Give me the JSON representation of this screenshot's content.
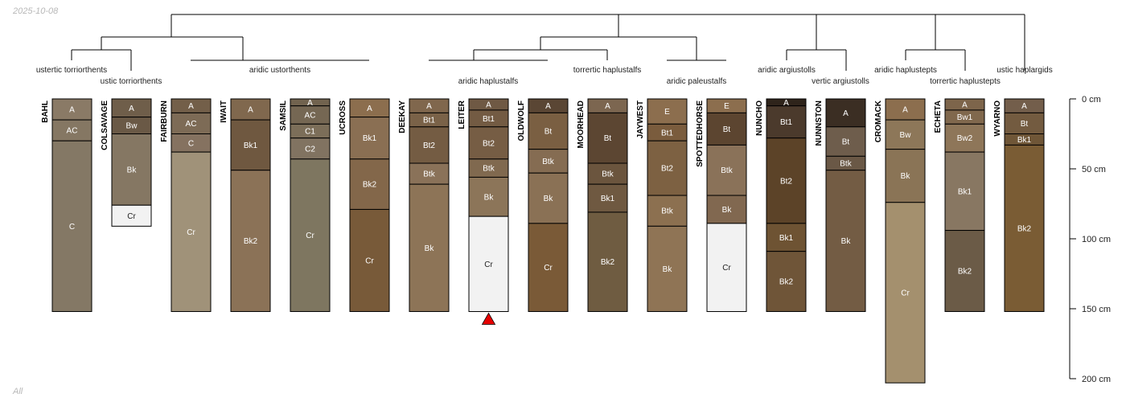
{
  "date_label": "2025-10-08",
  "footer_label": "All",
  "chart_data": {
    "type": "soil-profile-sketch",
    "depth_unit": "cm",
    "ylim": [
      0,
      200
    ],
    "axis_ticks": [
      {
        "value": 0,
        "label": "0 cm"
      },
      {
        "value": 50,
        "label": "50 cm"
      },
      {
        "value": 100,
        "label": "100 cm"
      },
      {
        "value": 150,
        "label": "150 cm"
      },
      {
        "value": 200,
        "label": "200 cm"
      }
    ],
    "taxa_labels": [
      "ustertic torriorthents",
      "ustic torriorthents",
      "aridic ustorthents",
      "aridic haplustalfs",
      "torrertic haplustalfs",
      "aridic paleustalfs",
      "aridic argiustolls",
      "vertic argiustolls",
      "aridic haplustepts",
      "torrertic haplustepts",
      "ustic haplargids"
    ],
    "marker": {
      "profile": "LEITER",
      "symbol": "triangle",
      "color": "#e60000"
    },
    "profiles": [
      {
        "name": "BAHL",
        "horizons": [
          {
            "name": "A",
            "top": 0,
            "bottom": 15,
            "color": "#8a7a66"
          },
          {
            "name": "AC",
            "top": 15,
            "bottom": 30,
            "color": "#857763"
          },
          {
            "name": "C",
            "top": 30,
            "bottom": 152,
            "color": "#847865"
          }
        ]
      },
      {
        "name": "COLSAVAGE",
        "horizons": [
          {
            "name": "A",
            "top": 0,
            "bottom": 13,
            "color": "#6f5e4a"
          },
          {
            "name": "Bw",
            "top": 13,
            "bottom": 25,
            "color": "#6a5946"
          },
          {
            "name": "Bk",
            "top": 25,
            "bottom": 76,
            "color": "#857763"
          },
          {
            "name": "Cr",
            "top": 76,
            "bottom": 91,
            "color": "#f2f2f2"
          }
        ]
      },
      {
        "name": "FAIRBURN",
        "horizons": [
          {
            "name": "A",
            "top": 0,
            "bottom": 10,
            "color": "#735f49"
          },
          {
            "name": "AC",
            "top": 10,
            "bottom": 25,
            "color": "#7d6b56"
          },
          {
            "name": "C",
            "top": 25,
            "bottom": 38,
            "color": "#857260"
          },
          {
            "name": "Cr",
            "top": 38,
            "bottom": 152,
            "color": "#a09279"
          }
        ]
      },
      {
        "name": "IWAIT",
        "horizons": [
          {
            "name": "A",
            "top": 0,
            "bottom": 15,
            "color": "#80684e"
          },
          {
            "name": "Bk1",
            "top": 15,
            "bottom": 51,
            "color": "#6f5840"
          },
          {
            "name": "Bk2",
            "top": 51,
            "bottom": 152,
            "color": "#8b7257"
          }
        ]
      },
      {
        "name": "SAMSIL",
        "horizons": [
          {
            "name": "A",
            "top": 0,
            "bottom": 5,
            "color": "#71634f"
          },
          {
            "name": "AC",
            "top": 5,
            "bottom": 18,
            "color": "#756753"
          },
          {
            "name": "C1",
            "top": 18,
            "bottom": 28,
            "color": "#7c6e59"
          },
          {
            "name": "C2",
            "top": 28,
            "bottom": 43,
            "color": "#817361"
          },
          {
            "name": "Cr",
            "top": 43,
            "bottom": 152,
            "color": "#7e7660"
          }
        ]
      },
      {
        "name": "UCROSS",
        "horizons": [
          {
            "name": "A",
            "top": 0,
            "bottom": 13,
            "color": "#8c6e4e"
          },
          {
            "name": "Bk1",
            "top": 13,
            "bottom": 43,
            "color": "#8a6f53"
          },
          {
            "name": "Bk2",
            "top": 43,
            "bottom": 79,
            "color": "#83674a"
          },
          {
            "name": "Cr",
            "top": 79,
            "bottom": 152,
            "color": "#785a39"
          }
        ]
      },
      {
        "name": "DEEKAY",
        "horizons": [
          {
            "name": "A",
            "top": 0,
            "bottom": 10,
            "color": "#80674d"
          },
          {
            "name": "Bt1",
            "top": 10,
            "bottom": 20,
            "color": "#7a6248"
          },
          {
            "name": "Bt2",
            "top": 20,
            "bottom": 46,
            "color": "#745c43"
          },
          {
            "name": "Btk",
            "top": 46,
            "bottom": 61,
            "color": "#8a7259"
          },
          {
            "name": "Bk",
            "top": 61,
            "bottom": 152,
            "color": "#8d7457"
          }
        ]
      },
      {
        "name": "LEITER",
        "horizons": [
          {
            "name": "A",
            "top": 0,
            "bottom": 8,
            "color": "#6f5944"
          },
          {
            "name": "Bt1",
            "top": 8,
            "bottom": 20,
            "color": "#735b43"
          },
          {
            "name": "Bt2",
            "top": 20,
            "bottom": 43,
            "color": "#765d44"
          },
          {
            "name": "Btk",
            "top": 43,
            "bottom": 56,
            "color": "#80694f"
          },
          {
            "name": "Bk",
            "top": 56,
            "bottom": 84,
            "color": "#8c7559"
          },
          {
            "name": "Cr",
            "top": 84,
            "bottom": 152,
            "color": "#f2f2f2"
          }
        ]
      },
      {
        "name": "OLDWOLF",
        "horizons": [
          {
            "name": "A",
            "top": 0,
            "bottom": 10,
            "color": "#5a4634"
          },
          {
            "name": "Bt",
            "top": 10,
            "bottom": 36,
            "color": "#7a5f42"
          },
          {
            "name": "Btk",
            "top": 36,
            "bottom": 53,
            "color": "#856c52"
          },
          {
            "name": "Bk",
            "top": 53,
            "bottom": 89,
            "color": "#8a7155"
          },
          {
            "name": "Cr",
            "top": 89,
            "bottom": 152,
            "color": "#7a5a37"
          }
        ]
      },
      {
        "name": "MOORHEAD",
        "horizons": [
          {
            "name": "A",
            "top": 0,
            "bottom": 10,
            "color": "#7c6650"
          },
          {
            "name": "Bt",
            "top": 10,
            "bottom": 46,
            "color": "#5c4632"
          },
          {
            "name": "Btk",
            "top": 46,
            "bottom": 61,
            "color": "#6b553e"
          },
          {
            "name": "Bk1",
            "top": 61,
            "bottom": 81,
            "color": "#6f5941"
          },
          {
            "name": "Bk2",
            "top": 81,
            "bottom": 152,
            "color": "#6f5c41"
          }
        ]
      },
      {
        "name": "JAYWEST",
        "horizons": [
          {
            "name": "E",
            "top": 0,
            "bottom": 18,
            "color": "#8c6e4e"
          },
          {
            "name": "Bt1",
            "top": 18,
            "bottom": 30,
            "color": "#7a5c3d"
          },
          {
            "name": "Bt2",
            "top": 30,
            "bottom": 69,
            "color": "#7d6142"
          },
          {
            "name": "Btk",
            "top": 69,
            "bottom": 91,
            "color": "#8c7050"
          },
          {
            "name": "Bk",
            "top": 91,
            "bottom": 152,
            "color": "#8f7455"
          }
        ]
      },
      {
        "name": "SPOTTEDHORSE",
        "horizons": [
          {
            "name": "E",
            "top": 0,
            "bottom": 10,
            "color": "#8c6e4e"
          },
          {
            "name": "Bt",
            "top": 10,
            "bottom": 33,
            "color": "#5c4530"
          },
          {
            "name": "Btk",
            "top": 33,
            "bottom": 69,
            "color": "#8a7259"
          },
          {
            "name": "Bk",
            "top": 69,
            "bottom": 89,
            "color": "#816850"
          },
          {
            "name": "Cr",
            "top": 89,
            "bottom": 152,
            "color": "#f2f2f2"
          }
        ]
      },
      {
        "name": "NUNCHO",
        "horizons": [
          {
            "name": "A",
            "top": 0,
            "bottom": 5,
            "color": "#2f241b"
          },
          {
            "name": "Bt1",
            "top": 5,
            "bottom": 28,
            "color": "#4b3a2c"
          },
          {
            "name": "Bt2",
            "top": 28,
            "bottom": 89,
            "color": "#5c4328"
          },
          {
            "name": "Bk1",
            "top": 89,
            "bottom": 109,
            "color": "#6e5333"
          },
          {
            "name": "Bk2",
            "top": 109,
            "bottom": 152,
            "color": "#6f5538"
          }
        ]
      },
      {
        "name": "NUNNSTON",
        "horizons": [
          {
            "name": "A",
            "top": 0,
            "bottom": 20,
            "color": "#3b2e23"
          },
          {
            "name": "Bt",
            "top": 20,
            "bottom": 41,
            "color": "#6e5d4c"
          },
          {
            "name": "Btk",
            "top": 41,
            "bottom": 51,
            "color": "#6a5846"
          },
          {
            "name": "Bk",
            "top": 51,
            "bottom": 152,
            "color": "#735c44"
          }
        ]
      },
      {
        "name": "CROMACK",
        "horizons": [
          {
            "name": "A",
            "top": 0,
            "bottom": 15,
            "color": "#8c6e4e"
          },
          {
            "name": "Bw",
            "top": 15,
            "bottom": 36,
            "color": "#8d7759"
          },
          {
            "name": "Bk",
            "top": 36,
            "bottom": 74,
            "color": "#8a7456"
          },
          {
            "name": "Cr",
            "top": 74,
            "bottom": 203,
            "color": "#a4906e"
          }
        ]
      },
      {
        "name": "ECHETA",
        "horizons": [
          {
            "name": "A",
            "top": 0,
            "bottom": 8,
            "color": "#7d654b"
          },
          {
            "name": "Bw1",
            "top": 8,
            "bottom": 18,
            "color": "#80684d"
          },
          {
            "name": "Bw2",
            "top": 18,
            "bottom": 38,
            "color": "#8e7659"
          },
          {
            "name": "Bk1",
            "top": 38,
            "bottom": 94,
            "color": "#887762"
          },
          {
            "name": "Bk2",
            "top": 94,
            "bottom": 152,
            "color": "#6b5b47"
          }
        ]
      },
      {
        "name": "WYARNO",
        "horizons": [
          {
            "name": "A",
            "top": 0,
            "bottom": 10,
            "color": "#735e4b"
          },
          {
            "name": "Bt",
            "top": 10,
            "bottom": 25,
            "color": "#735b40"
          },
          {
            "name": "Bk1",
            "top": 25,
            "bottom": 33,
            "color": "#6f5637"
          },
          {
            "name": "Bk2",
            "top": 33,
            "bottom": 152,
            "color": "#7a5c34"
          }
        ]
      }
    ]
  }
}
